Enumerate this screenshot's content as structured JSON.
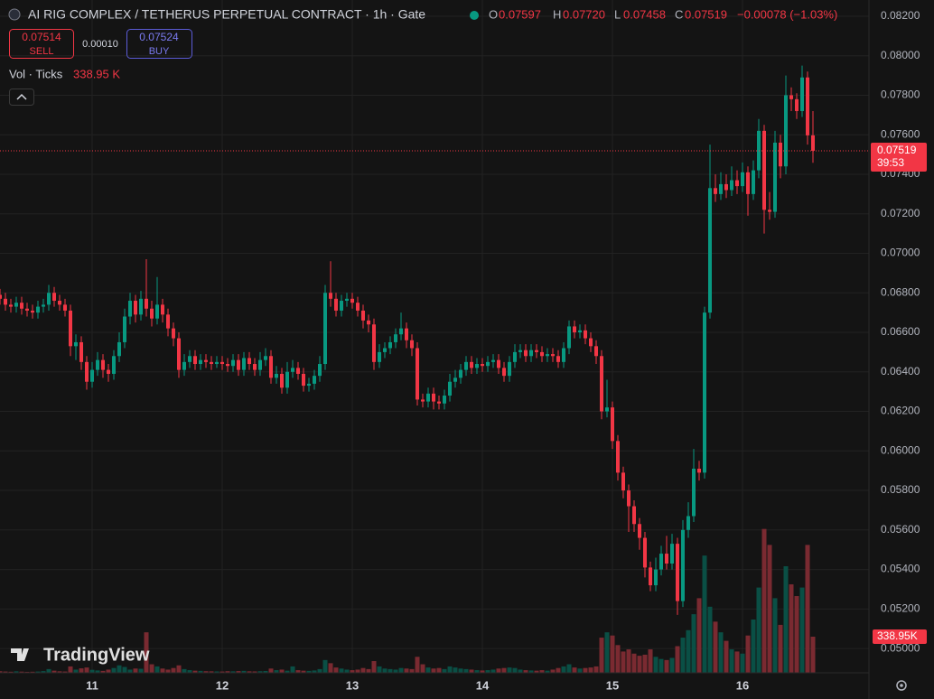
{
  "chart_data": {
    "type": "candlestick",
    "title": "AI RIG COMPLEX / TETHERUS PERPETUAL CONTRACT · 1h · Gate",
    "legend": [
      {
        "key": "O",
        "value": "0.07597"
      },
      {
        "key": "H",
        "value": "0.07720"
      },
      {
        "key": "L",
        "value": "0.07458"
      },
      {
        "key": "C",
        "value": "0.07519"
      }
    ],
    "change": "−0.00078 (−1.03%)",
    "trade": {
      "sell_price": "0.07514",
      "sell": "SELL",
      "spread": "0.00010",
      "buy_price": "0.07524",
      "buy": "BUY"
    },
    "volume_title": "Vol · Ticks",
    "volume_header_value": "338.95 K",
    "last_price_label": "0.07519",
    "countdown": "39:53",
    "volume_axis_label": "338.95K",
    "brand": "TradingView",
    "up_color": "#089981",
    "down_color": "#f23645",
    "up_volume_color": "#0a4f45",
    "down_volume_color": "#7a2a31",
    "grid": true,
    "categories": [
      null,
      null,
      null,
      null,
      null,
      null,
      null,
      null,
      null,
      null,
      null,
      null,
      null,
      null,
      null,
      null,
      null,
      "11",
      null,
      null,
      null,
      null,
      null,
      null,
      null,
      null,
      null,
      null,
      null,
      null,
      null,
      null,
      null,
      null,
      null,
      null,
      null,
      null,
      null,
      null,
      null,
      "12",
      null,
      null,
      null,
      null,
      null,
      null,
      null,
      null,
      null,
      null,
      null,
      null,
      null,
      null,
      null,
      null,
      null,
      null,
      null,
      null,
      null,
      null,
      null,
      "13",
      null,
      null,
      null,
      null,
      null,
      null,
      null,
      null,
      null,
      null,
      null,
      null,
      null,
      null,
      null,
      null,
      null,
      null,
      null,
      null,
      null,
      null,
      null,
      "14",
      null,
      null,
      null,
      null,
      null,
      null,
      null,
      null,
      null,
      null,
      null,
      null,
      null,
      null,
      null,
      null,
      null,
      null,
      null,
      null,
      null,
      null,
      null,
      "15",
      null,
      null,
      null,
      null,
      null,
      null,
      null,
      null,
      null,
      null,
      null,
      null,
      null,
      null,
      null,
      null,
      null,
      null,
      null,
      null,
      null,
      null,
      null,
      "16",
      null,
      null,
      null,
      null,
      null,
      null,
      null,
      null,
      null,
      null,
      null,
      null,
      null
    ],
    "open": [
      0.0679,
      0.0677,
      0.0674,
      0.0673,
      0.0675,
      0.0672,
      0.0671,
      0.067,
      0.0673,
      0.0674,
      0.068,
      0.0676,
      0.0674,
      0.0671,
      0.0653,
      0.0655,
      0.0645,
      0.0635,
      0.0641,
      0.0646,
      0.0641,
      0.0639,
      0.0648,
      0.0655,
      0.0668,
      0.0676,
      0.0669,
      0.0677,
      0.0672,
      0.0667,
      0.0674,
      0.0669,
      0.0662,
      0.0657,
      0.0641,
      0.0645,
      0.0648,
      0.0644,
      0.0646,
      0.0645,
      0.0644,
      0.0645,
      0.0644,
      0.0643,
      0.0646,
      0.0641,
      0.0647,
      0.0644,
      0.0641,
      0.0646,
      0.0648,
      0.0637,
      0.0639,
      0.0632,
      0.064,
      0.0642,
      0.0639,
      0.0633,
      0.0634,
      0.0638,
      0.0644,
      0.068,
      0.0677,
      0.0671,
      0.0676,
      0.0677,
      0.0675,
      0.0671,
      0.0666,
      0.0664,
      0.0645,
      0.065,
      0.0652,
      0.0655,
      0.0659,
      0.0662,
      0.0656,
      0.0652,
      0.0626,
      0.0625,
      0.0629,
      0.0625,
      0.0624,
      0.0628,
      0.0635,
      0.0637,
      0.0641,
      0.0645,
      0.0642,
      0.0644,
      0.0643,
      0.0645,
      0.0646,
      0.0642,
      0.0638,
      0.0645,
      0.065,
      0.0651,
      0.0648,
      0.0651,
      0.065,
      0.0648,
      0.0649,
      0.0648,
      0.0645,
      0.0652,
      0.0663,
      0.066,
      0.0661,
      0.0657,
      0.0653,
      0.0648,
      0.062,
      0.0622,
      0.0605,
      0.0589,
      0.058,
      0.0572,
      0.0563,
      0.0556,
      0.0541,
      0.0532,
      0.054,
      0.0548,
      0.0543,
      0.0553,
      0.0524,
      0.056,
      0.0567,
      0.0591,
      0.0589,
      0.067,
      0.0733,
      0.073,
      0.0735,
      0.0732,
      0.0737,
      0.0734,
      0.0741,
      0.073,
      0.0742,
      0.0762,
      0.0722,
      0.0721,
      0.0756,
      0.0744,
      0.078,
      0.0778,
      0.0772,
      0.0789,
      0.07597
    ],
    "high": [
      0.0682,
      0.068,
      0.0677,
      0.0678,
      0.0678,
      0.0675,
      0.0674,
      0.0676,
      0.0677,
      0.0684,
      0.0683,
      0.0679,
      0.0677,
      0.0674,
      0.0659,
      0.0658,
      0.0648,
      0.0645,
      0.065,
      0.0649,
      0.0644,
      0.0651,
      0.066,
      0.0672,
      0.068,
      0.0679,
      0.0681,
      0.0697,
      0.0676,
      0.0688,
      0.0677,
      0.0672,
      0.0665,
      0.066,
      0.0649,
      0.0651,
      0.0651,
      0.0649,
      0.0649,
      0.0648,
      0.0648,
      0.0648,
      0.0647,
      0.0649,
      0.0649,
      0.065,
      0.065,
      0.0647,
      0.065,
      0.0652,
      0.0651,
      0.0643,
      0.0642,
      0.0645,
      0.0646,
      0.0645,
      0.0642,
      0.0637,
      0.0641,
      0.0648,
      0.0684,
      0.0696,
      0.068,
      0.0679,
      0.068,
      0.068,
      0.0678,
      0.0674,
      0.0669,
      0.0667,
      0.0654,
      0.0655,
      0.0658,
      0.0662,
      0.067,
      0.0665,
      0.0659,
      0.0655,
      0.0629,
      0.0632,
      0.0632,
      0.0628,
      0.0631,
      0.0639,
      0.0641,
      0.0644,
      0.0648,
      0.0648,
      0.0647,
      0.0647,
      0.0648,
      0.0649,
      0.0649,
      0.0645,
      0.0648,
      0.0654,
      0.0654,
      0.0654,
      0.0654,
      0.0654,
      0.0653,
      0.0652,
      0.0652,
      0.0651,
      0.0655,
      0.0666,
      0.0666,
      0.0664,
      0.0664,
      0.066,
      0.0656,
      0.0651,
      0.0636,
      0.0625,
      0.0608,
      0.0592,
      0.0583,
      0.0575,
      0.0566,
      0.0559,
      0.0544,
      0.0546,
      0.0552,
      0.0557,
      0.0558,
      0.0556,
      0.0565,
      0.0574,
      0.0601,
      0.0595,
      0.0673,
      0.0755,
      0.074,
      0.0741,
      0.074,
      0.0744,
      0.0742,
      0.0746,
      0.0744,
      0.0747,
      0.0768,
      0.0765,
      0.0731,
      0.0762,
      0.076,
      0.079,
      0.0784,
      0.0781,
      0.0795,
      0.0792,
      0.0772
    ],
    "low": [
      0.0674,
      0.0671,
      0.067,
      0.067,
      0.0669,
      0.0668,
      0.0667,
      0.0667,
      0.067,
      0.0671,
      0.0673,
      0.0671,
      0.0668,
      0.0648,
      0.0646,
      0.0641,
      0.0631,
      0.0632,
      0.0638,
      0.0637,
      0.0635,
      0.0636,
      0.0645,
      0.0652,
      0.0664,
      0.0665,
      0.0666,
      0.0668,
      0.0663,
      0.0664,
      0.0665,
      0.0658,
      0.0653,
      0.0637,
      0.0638,
      0.0642,
      0.0641,
      0.0641,
      0.0642,
      0.0641,
      0.0642,
      0.0641,
      0.064,
      0.064,
      0.0638,
      0.0638,
      0.0641,
      0.0638,
      0.0638,
      0.0643,
      0.0634,
      0.0634,
      0.0629,
      0.0629,
      0.0637,
      0.0636,
      0.063,
      0.063,
      0.0631,
      0.0635,
      0.0641,
      0.0673,
      0.0668,
      0.0668,
      0.0673,
      0.0672,
      0.0668,
      0.0662,
      0.066,
      0.0641,
      0.0642,
      0.0647,
      0.0649,
      0.0652,
      0.0656,
      0.0652,
      0.0648,
      0.0623,
      0.0622,
      0.0622,
      0.0621,
      0.0621,
      0.0621,
      0.0625,
      0.0632,
      0.0634,
      0.0638,
      0.0639,
      0.0639,
      0.064,
      0.064,
      0.0642,
      0.0639,
      0.0635,
      0.0635,
      0.0642,
      0.0647,
      0.0645,
      0.0645,
      0.0647,
      0.0645,
      0.0645,
      0.0645,
      0.0642,
      0.0642,
      0.0649,
      0.0657,
      0.0657,
      0.0654,
      0.065,
      0.0644,
      0.0616,
      0.0617,
      0.0601,
      0.0585,
      0.0576,
      0.0559,
      0.0559,
      0.055,
      0.0536,
      0.0529,
      0.0529,
      0.0537,
      0.054,
      0.054,
      0.0517,
      0.0521,
      0.0556,
      0.0564,
      0.0585,
      0.0586,
      0.0667,
      0.0726,
      0.0727,
      0.0728,
      0.0729,
      0.073,
      0.0731,
      0.0719,
      0.0727,
      0.0738,
      0.071,
      0.0717,
      0.0718,
      0.0738,
      0.074,
      0.0772,
      0.0768,
      0.0769,
      0.0755,
      0.07458
    ],
    "close": [
      0.0677,
      0.0674,
      0.0673,
      0.0675,
      0.0672,
      0.0671,
      0.067,
      0.0673,
      0.0674,
      0.068,
      0.0676,
      0.0674,
      0.0671,
      0.0653,
      0.0655,
      0.0645,
      0.0635,
      0.0641,
      0.0646,
      0.0641,
      0.0639,
      0.0648,
      0.0655,
      0.0668,
      0.0676,
      0.0669,
      0.0677,
      0.0672,
      0.0667,
      0.0674,
      0.0669,
      0.0662,
      0.0657,
      0.0641,
      0.0645,
      0.0648,
      0.0644,
      0.0646,
      0.0645,
      0.0644,
      0.0645,
      0.0644,
      0.0643,
      0.0646,
      0.0641,
      0.0647,
      0.0644,
      0.0641,
      0.0646,
      0.0648,
      0.0637,
      0.0639,
      0.0632,
      0.064,
      0.0642,
      0.0639,
      0.0633,
      0.0634,
      0.0638,
      0.0644,
      0.068,
      0.0677,
      0.0671,
      0.0676,
      0.0677,
      0.0675,
      0.0671,
      0.0666,
      0.0664,
      0.0645,
      0.065,
      0.0652,
      0.0655,
      0.0659,
      0.0662,
      0.0656,
      0.0652,
      0.0626,
      0.0625,
      0.0629,
      0.0625,
      0.0624,
      0.0628,
      0.0635,
      0.0637,
      0.0641,
      0.0645,
      0.0642,
      0.0644,
      0.0643,
      0.0645,
      0.0646,
      0.0642,
      0.0638,
      0.0645,
      0.065,
      0.0651,
      0.0648,
      0.0651,
      0.065,
      0.0648,
      0.0649,
      0.0648,
      0.0645,
      0.0652,
      0.0663,
      0.066,
      0.0661,
      0.0657,
      0.0653,
      0.0648,
      0.062,
      0.0622,
      0.0605,
      0.0589,
      0.058,
      0.0572,
      0.0563,
      0.0556,
      0.0541,
      0.0532,
      0.054,
      0.0548,
      0.0543,
      0.0553,
      0.0524,
      0.056,
      0.0567,
      0.0591,
      0.0589,
      0.067,
      0.0733,
      0.073,
      0.0735,
      0.0732,
      0.0737,
      0.0734,
      0.0741,
      0.073,
      0.0742,
      0.0762,
      0.0722,
      0.0721,
      0.0756,
      0.0744,
      0.078,
      0.0778,
      0.0772,
      0.0789,
      0.07597,
      0.07519
    ],
    "volume": [
      15000,
      12000,
      10000,
      14000,
      11000,
      9000,
      10000,
      12000,
      16000,
      35000,
      20000,
      14000,
      12000,
      60000,
      30000,
      42000,
      50000,
      28000,
      22000,
      18000,
      30000,
      45000,
      70000,
      55000,
      30000,
      40000,
      38000,
      380000,
      80000,
      60000,
      40000,
      30000,
      45000,
      70000,
      35000,
      25000,
      20000,
      18000,
      15000,
      14000,
      13000,
      12000,
      15000,
      14000,
      16000,
      18000,
      14000,
      13000,
      15000,
      17000,
      40000,
      25000,
      30000,
      20000,
      60000,
      25000,
      20000,
      18000,
      22000,
      35000,
      120000,
      90000,
      50000,
      40000,
      30000,
      25000,
      30000,
      45000,
      35000,
      110000,
      60000,
      40000,
      35000,
      30000,
      45000,
      40000,
      35000,
      150000,
      80000,
      50000,
      40000,
      45000,
      35000,
      60000,
      50000,
      40000,
      35000,
      30000,
      25000,
      22000,
      25000,
      30000,
      40000,
      45000,
      50000,
      45000,
      30000,
      25000,
      22000,
      20000,
      25000,
      20000,
      30000,
      45000,
      60000,
      80000,
      50000,
      40000,
      45000,
      50000,
      60000,
      330000,
      380000,
      350000,
      260000,
      200000,
      220000,
      180000,
      160000,
      170000,
      220000,
      150000,
      130000,
      120000,
      140000,
      250000,
      330000,
      400000,
      550000,
      700000,
      1100000,
      620000,
      480000,
      380000,
      300000,
      220000,
      200000,
      180000,
      350000,
      500000,
      800000,
      1350000,
      1200000,
      700000,
      450000,
      1000000,
      830000,
      720000,
      800000,
      1200000,
      338950
    ],
    "ylim": [
      0.04877,
      0.08282
    ],
    "volume_lim": [
      0,
      6313000
    ],
    "yticks": [
      {
        "value": 0.082,
        "label": "0.08200"
      },
      {
        "value": 0.08,
        "label": "0.08000"
      },
      {
        "value": 0.078,
        "label": "0.07800"
      },
      {
        "value": 0.076,
        "label": "0.07600"
      },
      {
        "value": 0.074,
        "label": "0.07400"
      },
      {
        "value": 0.072,
        "label": "0.07200"
      },
      {
        "value": 0.07,
        "label": "0.07000"
      },
      {
        "value": 0.068,
        "label": "0.06800"
      },
      {
        "value": 0.066,
        "label": "0.06600"
      },
      {
        "value": 0.064,
        "label": "0.06400"
      },
      {
        "value": 0.062,
        "label": "0.06200"
      },
      {
        "value": 0.06,
        "label": "0.06000"
      },
      {
        "value": 0.058,
        "label": "0.05800"
      },
      {
        "value": 0.056,
        "label": "0.05600"
      },
      {
        "value": 0.054,
        "label": "0.05400"
      },
      {
        "value": 0.052,
        "label": "0.05200"
      },
      {
        "value": 0.05,
        "label": "0.05000"
      }
    ]
  }
}
